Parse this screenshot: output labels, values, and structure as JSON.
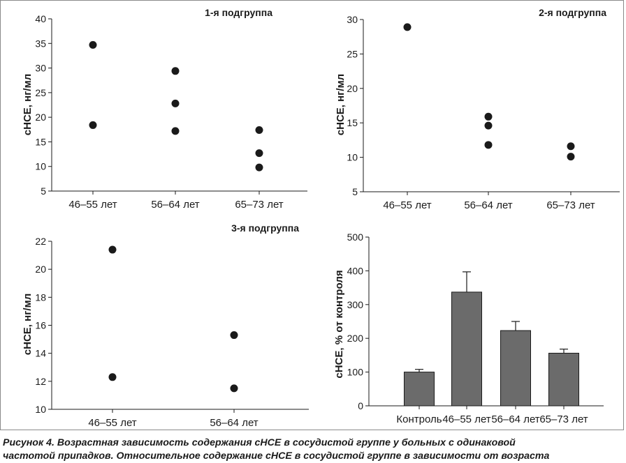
{
  "chart_data": [
    {
      "type": "scatter",
      "title": "1-я подгруппа",
      "ylabel": "сНСЕ, нг/мл",
      "xlabel": "",
      "categories": [
        "46–55 лет",
        "56–64 лет",
        "65–73 лет"
      ],
      "ylim": [
        5,
        40
      ],
      "yticks": [
        5,
        10,
        15,
        20,
        25,
        30,
        35,
        40
      ],
      "points": [
        {
          "x": "46–55 лет",
          "y": 34.7
        },
        {
          "x": "46–55 лет",
          "y": 18.4
        },
        {
          "x": "56–64 лет",
          "y": 29.4
        },
        {
          "x": "56–64 лет",
          "y": 22.8
        },
        {
          "x": "56–64 лет",
          "y": 17.2
        },
        {
          "x": "65–73 лет",
          "y": 17.4
        },
        {
          "x": "65–73 лет",
          "y": 12.7
        },
        {
          "x": "65–73 лет",
          "y": 9.8
        }
      ],
      "grid": false
    },
    {
      "type": "scatter",
      "title": "2-я подгруппа",
      "ylabel": "сНСЕ, нг/мл",
      "xlabel": "",
      "categories": [
        "46–55 лет",
        "56–64 лет",
        "65–73 лет"
      ],
      "ylim": [
        5,
        30
      ],
      "yticks": [
        5,
        10,
        15,
        20,
        25,
        30
      ],
      "points": [
        {
          "x": "46–55 лет",
          "y": 28.9
        },
        {
          "x": "56–64 лет",
          "y": 15.9
        },
        {
          "x": "56–64 лет",
          "y": 14.6
        },
        {
          "x": "56–64 лет",
          "y": 11.8
        },
        {
          "x": "65–73 лет",
          "y": 11.6
        },
        {
          "x": "65–73 лет",
          "y": 10.1
        }
      ],
      "grid": false
    },
    {
      "type": "scatter",
      "title": "3-я подгруппа",
      "ylabel": "сНСЕ, нг/мл",
      "xlabel": "",
      "categories": [
        "46–55 лет",
        "56–64 лет"
      ],
      "ylim": [
        10,
        22
      ],
      "yticks": [
        10,
        12,
        14,
        16,
        18,
        20,
        22
      ],
      "points": [
        {
          "x": "46–55 лет",
          "y": 21.4
        },
        {
          "x": "46–55 лет",
          "y": 12.3
        },
        {
          "x": "56–64 лет",
          "y": 15.3
        },
        {
          "x": "56–64 лет",
          "y": 11.5
        }
      ],
      "grid": false
    },
    {
      "type": "bar",
      "title": "",
      "ylabel": "сНСЕ, % от контроля",
      "xlabel": "",
      "categories": [
        "Контроль",
        "46–55 лет",
        "56–64 лет",
        "65–73 лет"
      ],
      "values": [
        100,
        337,
        223,
        156
      ],
      "errors": [
        8,
        60,
        27,
        12
      ],
      "ylim": [
        0,
        500
      ],
      "yticks": [
        0,
        100,
        200,
        300,
        400,
        500
      ],
      "bar_color": "#6b6b6b",
      "grid": false
    }
  ],
  "caption": {
    "line1": "Рисунок 4. Возрастная зависимость содержания сНСЕ в сосудистой группе у больных с одинаковой",
    "line2": "частотой припадков. Относительное содержание сНСЕ в сосудистой группе в зависимости от возраста"
  },
  "colors": {
    "ink": "#1a1a1a",
    "bar_fill": "#6b6b6b",
    "frame": "#8a8a8a"
  }
}
